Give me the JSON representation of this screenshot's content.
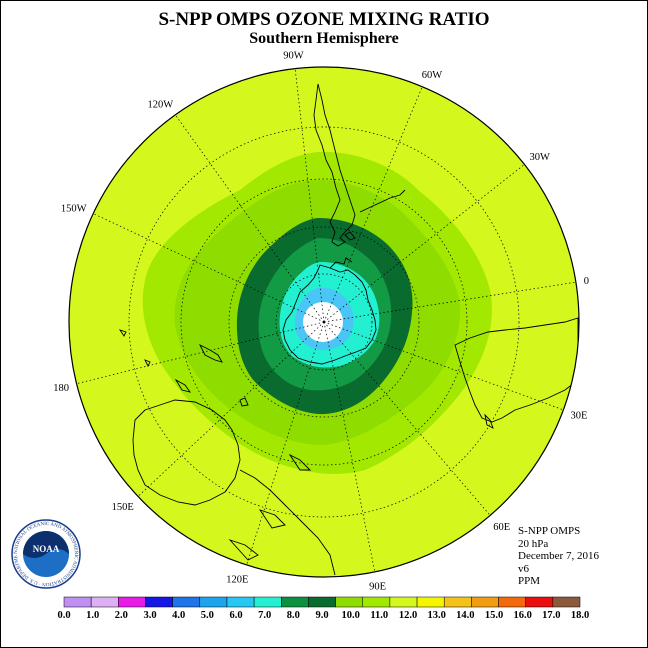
{
  "header": {
    "title": "S-NPP OMPS OZONE MIXING RATIO",
    "subtitle": "Southern Hemisphere"
  },
  "map": {
    "projection": "south-polar-stereographic",
    "longitude_labels": [
      {
        "text": "90W",
        "lon": -90
      },
      {
        "text": "60W",
        "lon": -60
      },
      {
        "text": "30W",
        "lon": -30
      },
      {
        "text": "0",
        "lon": 0
      },
      {
        "text": "30E",
        "lon": 30
      },
      {
        "text": "60E",
        "lon": 60
      },
      {
        "text": "90E",
        "lon": 90
      },
      {
        "text": "120E",
        "lon": 120
      },
      {
        "text": "150E",
        "lon": 150
      },
      {
        "text": "180",
        "lon": 180
      },
      {
        "text": "150W",
        "lon": -150
      },
      {
        "text": "120W",
        "lon": -120
      }
    ],
    "contour_colors": {
      "ocean_background": "#d4f71d",
      "band_11_12": "#a3e800",
      "band_10_11": "#8fdc00",
      "band_9_10": "#0a6b2e",
      "band_8_9": "#129a45",
      "band_7_8": "#22f0d0",
      "band_6_7": "#4ac6f6",
      "center_white": "#ffffff"
    }
  },
  "info": {
    "instrument": "S-NPP OMPS",
    "level": "20 hPa",
    "date": "December 7, 2016",
    "version": "v6",
    "units": "PPM"
  },
  "logo": {
    "text": "NOAA",
    "ring_text": "NATIONAL OCEANIC AND ATMOSPHERIC ADMINISTRATION · U.S. DEPARTMENT OF COMMERCE"
  },
  "colorbar": {
    "colors": [
      "#bf8ff2",
      "#dcb0f3",
      "#e71ce7",
      "#1616e6",
      "#1e74e8",
      "#1ca5ec",
      "#28c6f2",
      "#22f0d0",
      "#0d9140",
      "#0a6b2e",
      "#8fdc00",
      "#a3e800",
      "#d4f71d",
      "#f5f500",
      "#f3c31a",
      "#f29c11",
      "#f26a0c",
      "#ea0f0f",
      "#8b5a3c"
    ],
    "labels": [
      "0.0",
      "1.0",
      "2.0",
      "3.0",
      "4.0",
      "5.0",
      "6.0",
      "7.0",
      "8.0",
      "9.0",
      "10.0",
      "11.0",
      "12.0",
      "13.0",
      "14.0",
      "15.0",
      "16.0",
      "17.0",
      "18.0"
    ]
  }
}
